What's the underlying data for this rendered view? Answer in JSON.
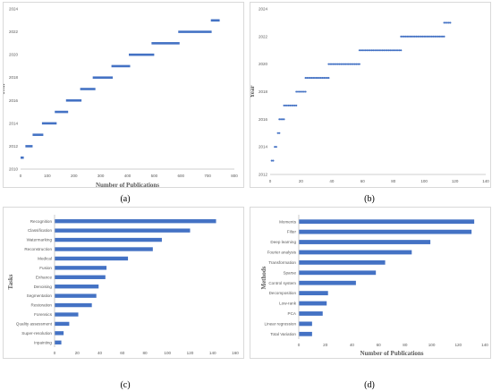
{
  "captions": [
    "(a)",
    "(b)",
    "(c)",
    "(d)"
  ],
  "chart_data": [
    {
      "type": "scatter",
      "style": "dashes",
      "xlabel": "Number of Publications",
      "ylabel": "Year",
      "xlim": [
        0,
        800
      ],
      "ylim": [
        2010,
        2024
      ],
      "xticks": [
        0,
        100,
        200,
        300,
        400,
        500,
        600,
        700,
        800
      ],
      "yticks": [
        2010,
        2012,
        2014,
        2016,
        2018,
        2020,
        2022,
        2024
      ],
      "grid": false,
      "color": "#4472c4",
      "segments": [
        {
          "year": 2011,
          "x_start": 0,
          "x_end": 12
        },
        {
          "year": 2012,
          "x_start": 18,
          "x_end": 45
        },
        {
          "year": 2013,
          "x_start": 45,
          "x_end": 85
        },
        {
          "year": 2014,
          "x_start": 80,
          "x_end": 135
        },
        {
          "year": 2015,
          "x_start": 128,
          "x_end": 178
        },
        {
          "year": 2016,
          "x_start": 170,
          "x_end": 228
        },
        {
          "year": 2017,
          "x_start": 223,
          "x_end": 280
        },
        {
          "year": 2018,
          "x_start": 270,
          "x_end": 345
        },
        {
          "year": 2019,
          "x_start": 340,
          "x_end": 410
        },
        {
          "year": 2020,
          "x_start": 405,
          "x_end": 500
        },
        {
          "year": 2021,
          "x_start": 490,
          "x_end": 595
        },
        {
          "year": 2022,
          "x_start": 590,
          "x_end": 715
        },
        {
          "year": 2023,
          "x_start": 712,
          "x_end": 745
        }
      ]
    },
    {
      "type": "scatter",
      "xlabel": "Number of Publications",
      "ylabel": "Year",
      "xlim": [
        0,
        140
      ],
      "ylim": [
        2012,
        2024
      ],
      "xticks": [
        0,
        20,
        40,
        60,
        80,
        100,
        120,
        140
      ],
      "yticks": [
        2012,
        2014,
        2016,
        2018,
        2020,
        2022,
        2024
      ],
      "grid": false,
      "color": "#4472c4",
      "runs": [
        {
          "year": 2013,
          "x_start": 1,
          "x_end": 2
        },
        {
          "year": 2014,
          "x_start": 3,
          "x_end": 4
        },
        {
          "year": 2015,
          "x_start": 5,
          "x_end": 6
        },
        {
          "year": 2016,
          "x_start": 6,
          "x_end": 9
        },
        {
          "year": 2017,
          "x_start": 9,
          "x_end": 17
        },
        {
          "year": 2018,
          "x_start": 17,
          "x_end": 23
        },
        {
          "year": 2019,
          "x_start": 23,
          "x_end": 38
        },
        {
          "year": 2020,
          "x_start": 38,
          "x_end": 58
        },
        {
          "year": 2021,
          "x_start": 58,
          "x_end": 85
        },
        {
          "year": 2022,
          "x_start": 85,
          "x_end": 113
        },
        {
          "year": 2023,
          "x_start": 113,
          "x_end": 117
        }
      ]
    },
    {
      "type": "bar",
      "orientation": "horizontal",
      "xlabel": "Number of Publications",
      "ylabel": "Tasks",
      "xlim": [
        0,
        160
      ],
      "xticks": [
        0,
        20,
        40,
        60,
        80,
        100,
        120,
        140,
        160
      ],
      "grid": false,
      "color": "#4472c4",
      "categories": [
        "Recognition",
        "Classification",
        "Watermarking",
        "Reconstruction",
        "Medical",
        "Fusion",
        "Enhance",
        "Denoising",
        "Segmentation",
        "Restoration",
        "Forensics",
        "Quality assessment",
        "Super-resolution",
        "Inpainting"
      ],
      "values": [
        143,
        120,
        95,
        87,
        65,
        46,
        45,
        39,
        37,
        33,
        21,
        13,
        8,
        6
      ]
    },
    {
      "type": "bar",
      "orientation": "horizontal",
      "xlabel": "Number of Publications",
      "ylabel": "Methods",
      "xlim": [
        0,
        140
      ],
      "xticks": [
        0,
        20,
        40,
        60,
        80,
        100,
        120,
        140
      ],
      "grid": false,
      "color": "#4472c4",
      "categories": [
        "Moments",
        "Filter",
        "Deep learning",
        "Fourier analysis",
        "Transformation",
        "Sparse",
        "Control system",
        "Decomposition",
        "Low-rank",
        "PCA",
        "Linear regression",
        "Total Variation"
      ],
      "values": [
        132,
        130,
        99,
        85,
        65,
        58,
        43,
        22,
        21,
        18,
        10,
        10
      ]
    }
  ]
}
